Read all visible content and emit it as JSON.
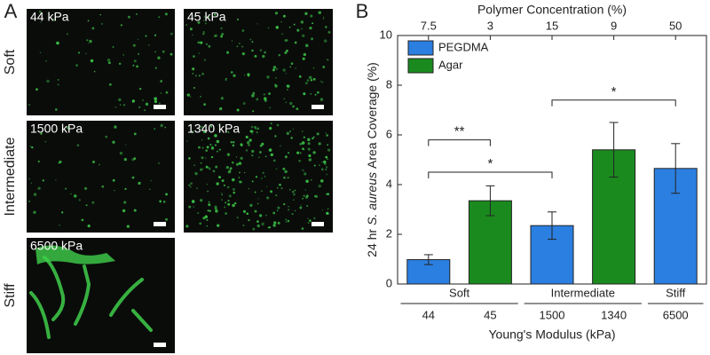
{
  "panel_a": {
    "label": "A",
    "rows": [
      "Soft",
      "Intermediate",
      "Stiff"
    ],
    "images": [
      "44 kPa",
      "45 kPa",
      "1500 kPa",
      "1340 kPa",
      "6500 kPa"
    ]
  },
  "chart_data": {
    "type": "bar",
    "panel_label": "B",
    "y_label_parts": [
      "24 hr",
      "S. aureus",
      "Area Coverage (%)"
    ],
    "x_label": "Young's Modulus (kPa)",
    "top_label": "Polymer Concentration (%)",
    "categories": [
      "44",
      "45",
      "1500",
      "1340",
      "6500"
    ],
    "top_categories": [
      "7.5",
      "3",
      "15",
      "9",
      "50"
    ],
    "groups": [
      {
        "name": "Soft",
        "categories": [
          "44",
          "45"
        ]
      },
      {
        "name": "Intermediate",
        "categories": [
          "1500",
          "1340"
        ]
      },
      {
        "name": "Stiff",
        "categories": [
          "6500"
        ]
      }
    ],
    "series": [
      {
        "name": "PEGDMA",
        "color": "#2b7fe0",
        "values": [
          0.98,
          null,
          2.35,
          null,
          4.65
        ],
        "errors": [
          0.2,
          null,
          0.55,
          null,
          1.0
        ]
      },
      {
        "name": "Agar",
        "color": "#1a8a1f",
        "values": [
          null,
          3.35,
          null,
          5.4,
          null
        ],
        "errors": [
          null,
          0.6,
          null,
          1.1,
          null
        ]
      }
    ],
    "significance": [
      {
        "label": "**",
        "from": "44",
        "to": "45",
        "y": 5.8
      },
      {
        "label": "*",
        "from": "44",
        "to": "1500",
        "y": 4.5
      },
      {
        "label": "*",
        "from": "1500",
        "to": "6500",
        "y": 7.4
      }
    ],
    "ylim": [
      0,
      10
    ],
    "yticks": [
      0,
      2,
      4,
      6,
      8,
      10
    ],
    "legend": "upper-left"
  }
}
